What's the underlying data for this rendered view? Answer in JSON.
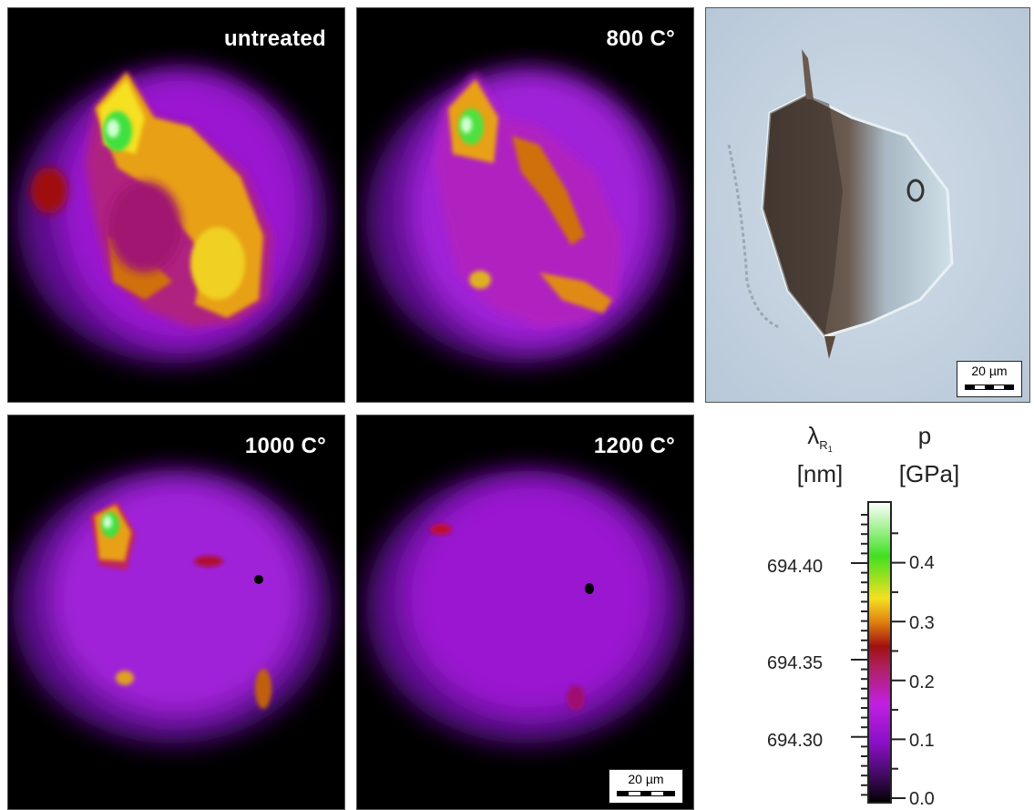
{
  "panels": [
    {
      "id": "untreated",
      "label": "untreated"
    },
    {
      "id": "800",
      "label": "800 C°"
    },
    {
      "id": "1000",
      "label": "1000 C°"
    },
    {
      "id": "1200",
      "label": "1200 C°"
    }
  ],
  "photo_scalebar": {
    "label": "20 µm"
  },
  "map_scalebar": {
    "label": "20 µm"
  },
  "colorbar": {
    "left_symbol": "λ",
    "left_subscript": "R",
    "left_subsubscript": "1",
    "left_unit": "[nm]",
    "right_symbol": "p",
    "right_unit": "[GPa]",
    "left_ticks": [
      "694.40",
      "694.35",
      "694.30"
    ],
    "right_ticks": [
      "0.4",
      "0.3",
      "0.2",
      "0.1",
      "0.0"
    ],
    "gradient_colors": [
      "#000000",
      "#3a0a55",
      "#8a10c8",
      "#c020e0",
      "#b02060",
      "#a01010",
      "#e08010",
      "#f5e020",
      "#40e020",
      "#ffffff"
    ]
  }
}
